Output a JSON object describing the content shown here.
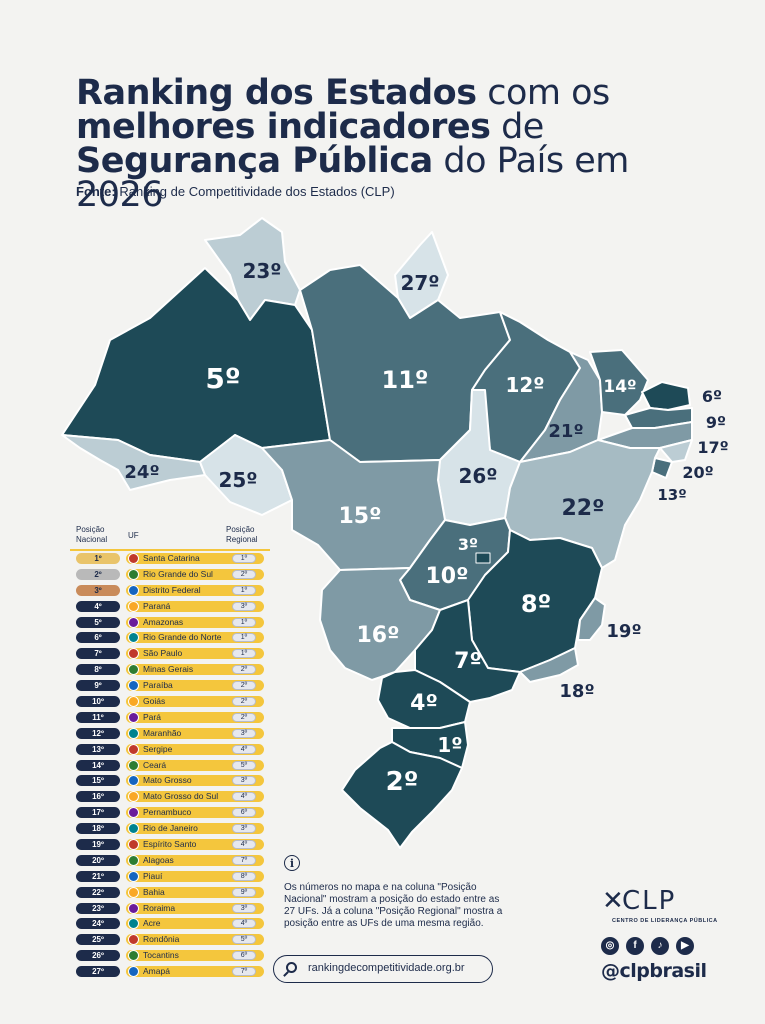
{
  "header": {
    "title_line1_bold": "Ranking dos Estados",
    "title_line1_light": "com os",
    "title_line2_bold": "melhores indicadores",
    "title_line2_light": "de",
    "title_line3_bold": "Segurança Pública",
    "title_line3_light": "do País em 2026",
    "source_label": "Fonte:",
    "source_text": "Ranking de Competitividade dos Estados (CLP)"
  },
  "colors": {
    "dark": "#1e4a57",
    "mid": "#4a6f7c",
    "light": "#7f9aa5",
    "pale": "#bccdd4",
    "navy": "#1d2b4a",
    "gold": "#f4c63d"
  },
  "map_labels": {
    "RR": "23º",
    "AP": "27º",
    "AM": "5º",
    "PA": "11º",
    "MA": "12º",
    "CE": "14º",
    "RN": "6º",
    "PB": "9º",
    "PE": "17º",
    "AL": "20º",
    "SE": "13º",
    "PI": "21º",
    "AC": "24º",
    "RO": "25º",
    "TO": "26º",
    "BA": "22º",
    "MT": "15º",
    "DF": "3º",
    "GO": "10º",
    "MG": "8º",
    "ES": "19º",
    "MS": "16º",
    "SP": "7º",
    "RJ": "18º",
    "PR": "4º",
    "SC": "1º",
    "RS": "2º"
  },
  "table": {
    "col_national": "Posição Nacional",
    "col_uf": "UF",
    "col_regional": "Posição Regional",
    "rows": [
      {
        "pos": "1º",
        "uf": "Santa Catarina",
        "reg": "1º",
        "medal": "#e9c46a"
      },
      {
        "pos": "2º",
        "uf": "Rio Grande do Sul",
        "reg": "2º",
        "medal": "#b9b9b9"
      },
      {
        "pos": "3º",
        "uf": "Distrito Federal",
        "reg": "1º",
        "medal": "#c98b5a"
      },
      {
        "pos": "4º",
        "uf": "Paraná",
        "reg": "3º"
      },
      {
        "pos": "5º",
        "uf": "Amazonas",
        "reg": "1º"
      },
      {
        "pos": "6º",
        "uf": "Rio Grande do Norte",
        "reg": "1º"
      },
      {
        "pos": "7º",
        "uf": "São Paulo",
        "reg": "1º"
      },
      {
        "pos": "8º",
        "uf": "Minas Gerais",
        "reg": "2º"
      },
      {
        "pos": "9º",
        "uf": "Paraíba",
        "reg": "2º"
      },
      {
        "pos": "10º",
        "uf": "Goiás",
        "reg": "2º"
      },
      {
        "pos": "11º",
        "uf": "Pará",
        "reg": "2º"
      },
      {
        "pos": "12º",
        "uf": "Maranhão",
        "reg": "3º"
      },
      {
        "pos": "13º",
        "uf": "Sergipe",
        "reg": "4º"
      },
      {
        "pos": "14º",
        "uf": "Ceará",
        "reg": "5º"
      },
      {
        "pos": "15º",
        "uf": "Mato Grosso",
        "reg": "3º"
      },
      {
        "pos": "16º",
        "uf": "Mato Grosso do Sul",
        "reg": "4º"
      },
      {
        "pos": "17º",
        "uf": "Pernambuco",
        "reg": "6º"
      },
      {
        "pos": "18º",
        "uf": "Rio de Janeiro",
        "reg": "3º"
      },
      {
        "pos": "19º",
        "uf": "Espírito Santo",
        "reg": "4º"
      },
      {
        "pos": "20º",
        "uf": "Alagoas",
        "reg": "7º"
      },
      {
        "pos": "21º",
        "uf": "Piauí",
        "reg": "8º"
      },
      {
        "pos": "22º",
        "uf": "Bahia",
        "reg": "9º"
      },
      {
        "pos": "23º",
        "uf": "Roraima",
        "reg": "3º"
      },
      {
        "pos": "24º",
        "uf": "Acre",
        "reg": "4º"
      },
      {
        "pos": "25º",
        "uf": "Rondônia",
        "reg": "5º"
      },
      {
        "pos": "26º",
        "uf": "Tocantins",
        "reg": "6º"
      },
      {
        "pos": "27º",
        "uf": "Amapá",
        "reg": "7º"
      }
    ]
  },
  "note": {
    "text": "Os números no mapa e na coluna \"Posição Nacional\" mostram a posição do estado entre as 27 UFs. Já a coluna \"Posição Regional\" mostra a posição entre as UFs de uma mesma região."
  },
  "footer": {
    "website": "rankingdecompetitividade.org.br",
    "logo_text": "CLP",
    "logo_sub": "CENTRO DE LIDERANÇA PÚBLICA",
    "handle": "@clpbrasil",
    "social_icons": [
      "instagram-icon",
      "facebook-icon",
      "tiktok-icon",
      "youtube-icon"
    ]
  }
}
